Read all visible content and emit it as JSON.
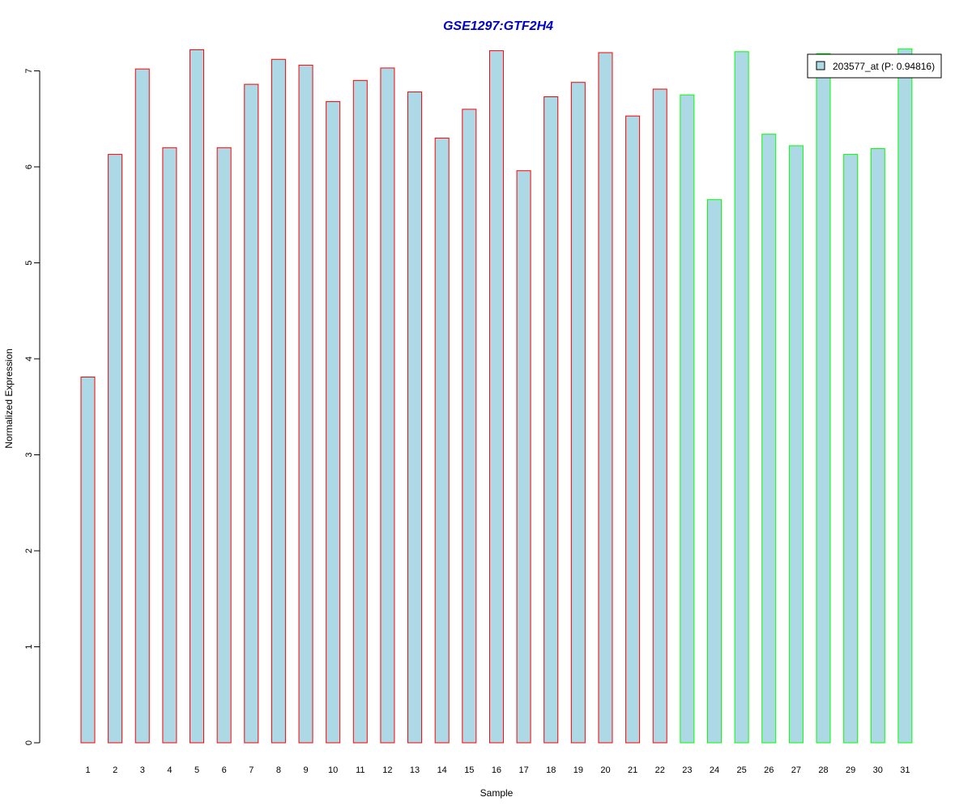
{
  "chart_data": {
    "type": "bar",
    "title": "GSE1297:GTF2H4",
    "xlabel": "Sample",
    "ylabel": "Normalized Expression",
    "categories": [
      "1",
      "2",
      "3",
      "4",
      "5",
      "6",
      "7",
      "8",
      "9",
      "10",
      "11",
      "12",
      "13",
      "14",
      "15",
      "16",
      "17",
      "18",
      "19",
      "20",
      "21",
      "22",
      "23",
      "24",
      "25",
      "26",
      "27",
      "28",
      "29",
      "30",
      "31"
    ],
    "values": [
      3.81,
      6.13,
      7.02,
      6.2,
      7.22,
      6.2,
      6.86,
      7.12,
      7.06,
      6.68,
      6.9,
      7.03,
      6.78,
      6.3,
      6.6,
      7.21,
      5.96,
      6.73,
      6.88,
      7.19,
      6.53,
      6.81,
      6.75,
      5.66,
      7.2,
      6.34,
      6.22,
      7.18,
      6.13,
      6.19,
      7.23
    ],
    "groups": [
      "a",
      "a",
      "a",
      "a",
      "a",
      "a",
      "a",
      "a",
      "a",
      "a",
      "a",
      "a",
      "a",
      "a",
      "a",
      "a",
      "a",
      "a",
      "a",
      "a",
      "a",
      "a",
      "b",
      "b",
      "b",
      "b",
      "b",
      "b",
      "b",
      "b",
      "b"
    ],
    "yticks": [
      "0",
      "1",
      "2",
      "3",
      "4",
      "5",
      "6",
      "7"
    ],
    "ylim": [
      0,
      7.3
    ],
    "legend": {
      "label": "203577_at (P: 0.94816)",
      "placement": "top-right"
    },
    "colors": {
      "fill": "#add8e6",
      "border_group_a": "#ff0000",
      "border_group_b": "#00ff00",
      "title": "#0000cc"
    },
    "grid": false
  }
}
